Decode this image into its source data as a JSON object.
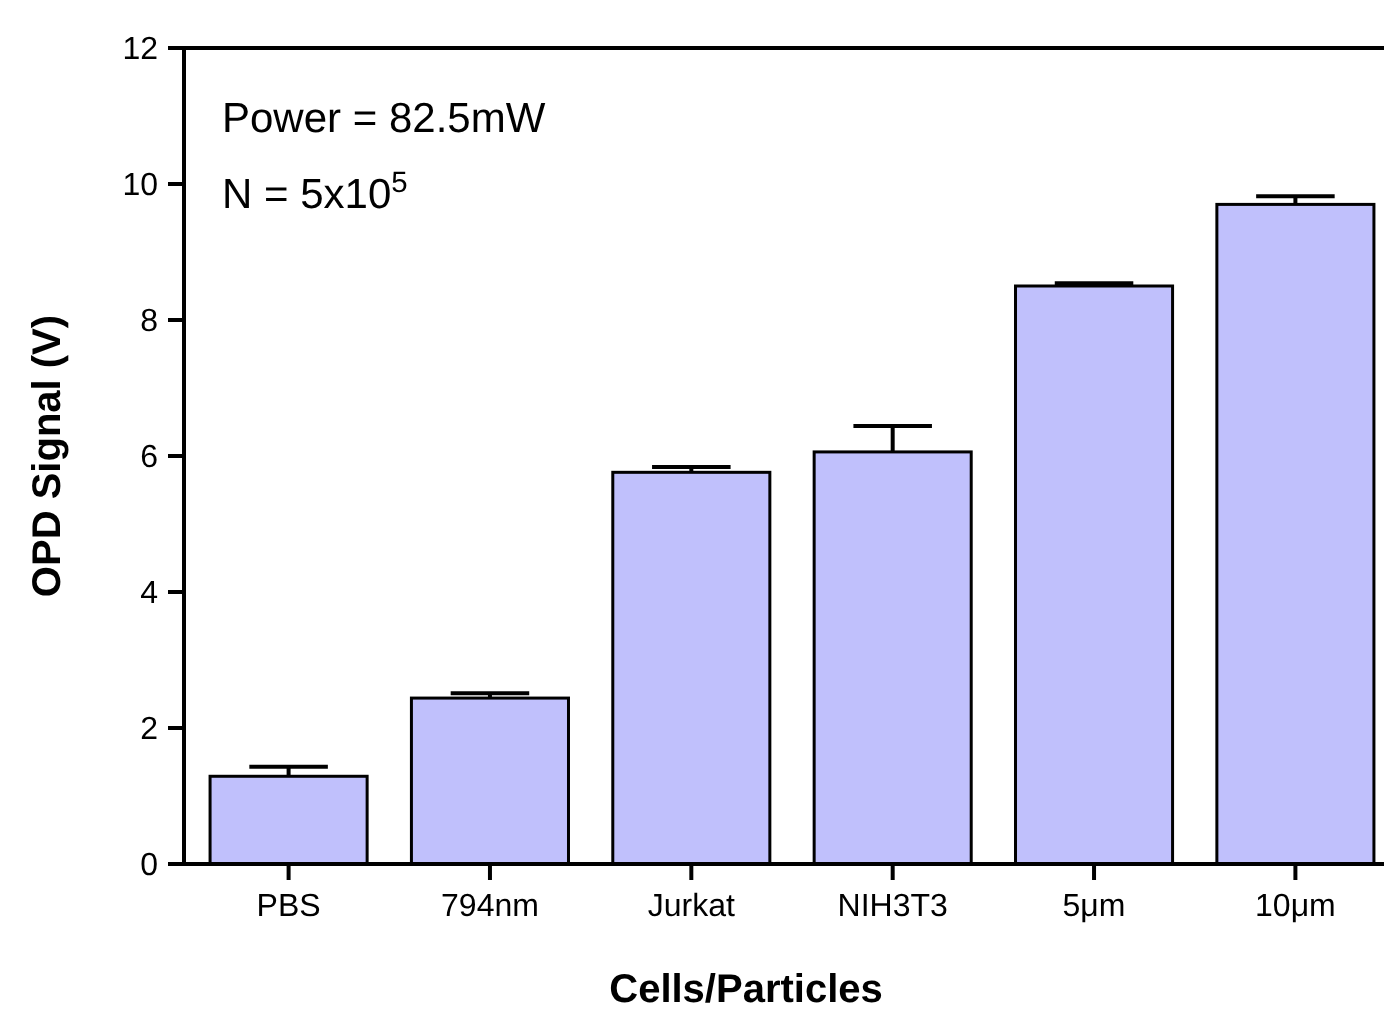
{
  "chart_data": {
    "type": "bar",
    "xlabel": "Cells/Particles",
    "ylabel": "OPD Signal (V)",
    "categories": [
      "PBS",
      "794nm",
      "Jurkat",
      "NIH3T3",
      "5μm",
      "10μm"
    ],
    "values": [
      1.29,
      2.44,
      5.76,
      6.06,
      8.5,
      9.7
    ],
    "errors": [
      0.14,
      0.07,
      0.08,
      0.38,
      0.04,
      0.12
    ],
    "color": "#c0c0fc",
    "ylim": [
      0,
      12
    ],
    "yticks": [
      0,
      2,
      4,
      6,
      8,
      10,
      12
    ],
    "grid": false,
    "annotations": [
      "Power = 82.5mW",
      "N = 5x10$^{5}$"
    ]
  }
}
